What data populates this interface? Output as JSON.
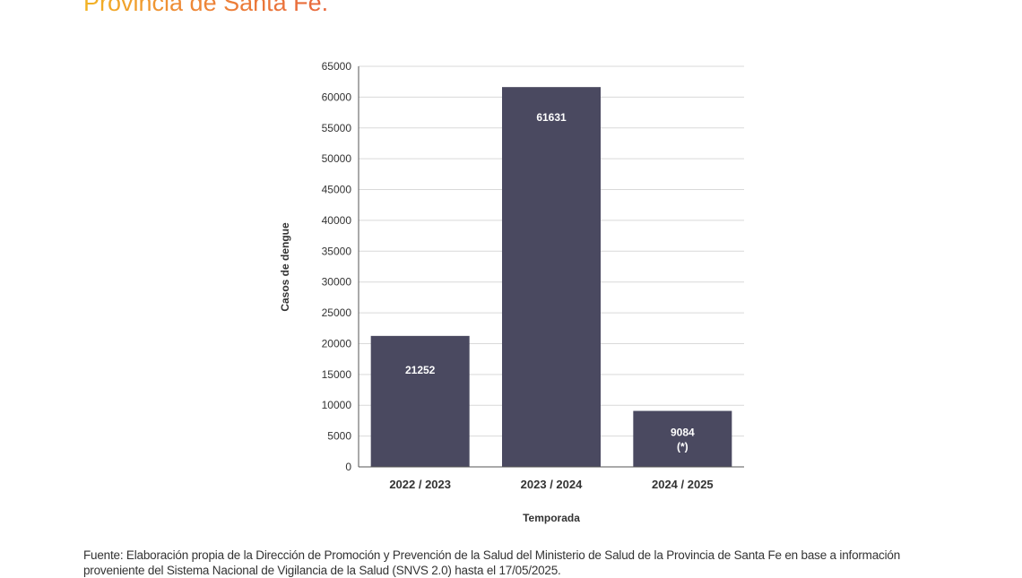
{
  "header": {
    "title": "Provincia de Santa Fe."
  },
  "chart_data": {
    "type": "bar",
    "categories": [
      "2022 / 2023",
      "2023 / 2024",
      "2024 / 2025"
    ],
    "values": [
      21252,
      61631,
      9084
    ],
    "data_labels": [
      "21252",
      "61631",
      "9084"
    ],
    "annotations": [
      "",
      "",
      "(*)"
    ],
    "xlabel": "Temporada",
    "ylabel": "Casos de dengue",
    "ylim": [
      0,
      65000
    ],
    "yticks": [
      0,
      5000,
      10000,
      15000,
      20000,
      25000,
      30000,
      35000,
      40000,
      45000,
      50000,
      55000,
      60000,
      65000
    ],
    "grid": true,
    "bar_color": "#4a4960"
  },
  "footer": {
    "source": "Fuente: Elaboración propia de la Dirección de Promoción y Prevención de la Salud del Ministerio de Salud de la Provincia de Santa Fe en base a información proveniente del Sistema Nacional de Vigilancia de la Salud (SNVS 2.0) hasta el 17/05/2025."
  }
}
